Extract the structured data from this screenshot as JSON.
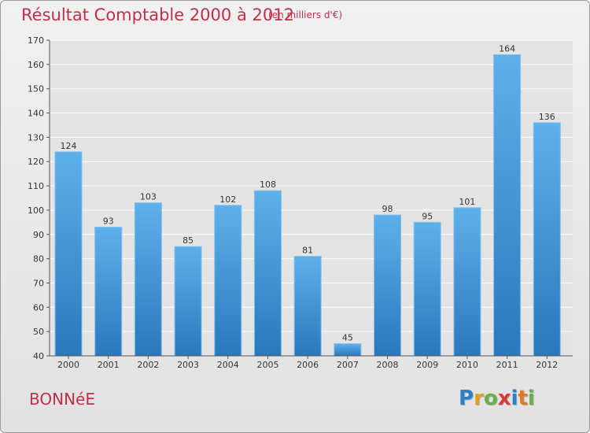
{
  "chart_data": {
    "type": "bar",
    "title": "Résultat Comptable 2000 à 2012",
    "subtitle": "(en milliers d'€)",
    "categories": [
      "2000",
      "2001",
      "2002",
      "2003",
      "2004",
      "2005",
      "2006",
      "2007",
      "2008",
      "2009",
      "2010",
      "2011",
      "2012"
    ],
    "values": [
      124,
      93,
      103,
      85,
      102,
      108,
      81,
      45,
      98,
      95,
      101,
      164,
      136
    ],
    "ylim": [
      40,
      170
    ],
    "yticks": [
      40,
      50,
      60,
      70,
      80,
      90,
      100,
      110,
      120,
      130,
      140,
      150,
      160,
      170
    ],
    "grid": true,
    "bar_color": "#4a9ad8"
  },
  "footer": {
    "commune": "BONNéE",
    "logo_letters": [
      {
        "ch": "P",
        "color": "#2f7fc8"
      },
      {
        "ch": "r",
        "color": "#e0a020"
      },
      {
        "ch": "o",
        "color": "#6ab04a"
      },
      {
        "ch": "x",
        "color": "#d83a3a"
      },
      {
        "ch": "i",
        "color": "#2f7fc8"
      },
      {
        "ch": "t",
        "color": "#e07a20"
      },
      {
        "ch": "i",
        "color": "#6ab04a"
      }
    ]
  }
}
